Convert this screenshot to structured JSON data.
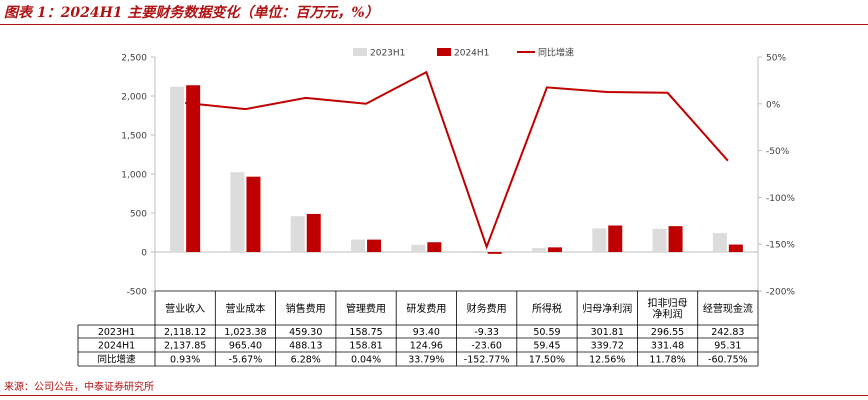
{
  "title": "图表 1：2024H1 主要财务数据变化（单位：百万元，%）",
  "source": "来源：公司公告，中泰证券研究所",
  "colors": {
    "accent": "#b01313",
    "series_2023": "#dcdcdc",
    "series_2024": "#c00000",
    "growth_line": "#c00000"
  },
  "chart_data": {
    "type": "bar",
    "categories": [
      "营业收入",
      "营业成本",
      "销售费用",
      "管理费用",
      "研发费用",
      "财务费用",
      "所得税",
      "归母净利润",
      "扣非归母净利润",
      "经营现金流"
    ],
    "category_lines": [
      [
        "营业收入"
      ],
      [
        "营业成本"
      ],
      [
        "销售费用"
      ],
      [
        "管理费用"
      ],
      [
        "研发费用"
      ],
      [
        "财务费用"
      ],
      [
        "所得税"
      ],
      [
        "归母净利润"
      ],
      [
        "扣非归母",
        "净利润"
      ],
      [
        "经营现金流"
      ]
    ],
    "series": [
      {
        "name": "2023H1",
        "values": [
          2118.12,
          1023.38,
          459.3,
          158.75,
          93.4,
          -9.33,
          50.59,
          301.81,
          296.55,
          242.83
        ],
        "labels": [
          "2,118.12",
          "1,023.38",
          "459.30",
          "158.75",
          "93.40",
          "-9.33",
          "50.59",
          "301.81",
          "296.55",
          "242.83"
        ]
      },
      {
        "name": "2024H1",
        "values": [
          2137.85,
          965.4,
          488.13,
          158.81,
          124.96,
          -23.6,
          59.45,
          339.72,
          331.48,
          95.31
        ],
        "labels": [
          "2,137.85",
          "965.40",
          "488.13",
          "158.81",
          "124.96",
          "-23.60",
          "59.45",
          "339.72",
          "331.48",
          "95.31"
        ]
      },
      {
        "name": "同比增速",
        "axis": "right",
        "type": "line",
        "values": [
          0.93,
          -5.67,
          6.28,
          0.04,
          33.79,
          -152.77,
          17.5,
          12.56,
          11.78,
          -60.75
        ],
        "labels": [
          "0.93%",
          "-5.67%",
          "6.28%",
          "0.04%",
          "33.79%",
          "-152.77%",
          "17.50%",
          "12.56%",
          "11.78%",
          "-60.75%"
        ]
      }
    ],
    "y_left": {
      "lim": [
        -500,
        2500
      ],
      "ticks": [
        -500,
        0,
        500,
        1000,
        1500,
        2000,
        2500
      ],
      "tick_labels": [
        "-500",
        "0",
        "500",
        "1,000",
        "1,500",
        "2,000",
        "2,500"
      ]
    },
    "y_right": {
      "lim": [
        -200,
        50
      ],
      "ticks": [
        -200,
        -150,
        -100,
        -50,
        0,
        50
      ],
      "tick_labels": [
        "-200%",
        "-150%",
        "-100%",
        "-50%",
        "0%",
        "50%"
      ]
    },
    "legend": "top-center",
    "grid": false,
    "data_table": true
  }
}
